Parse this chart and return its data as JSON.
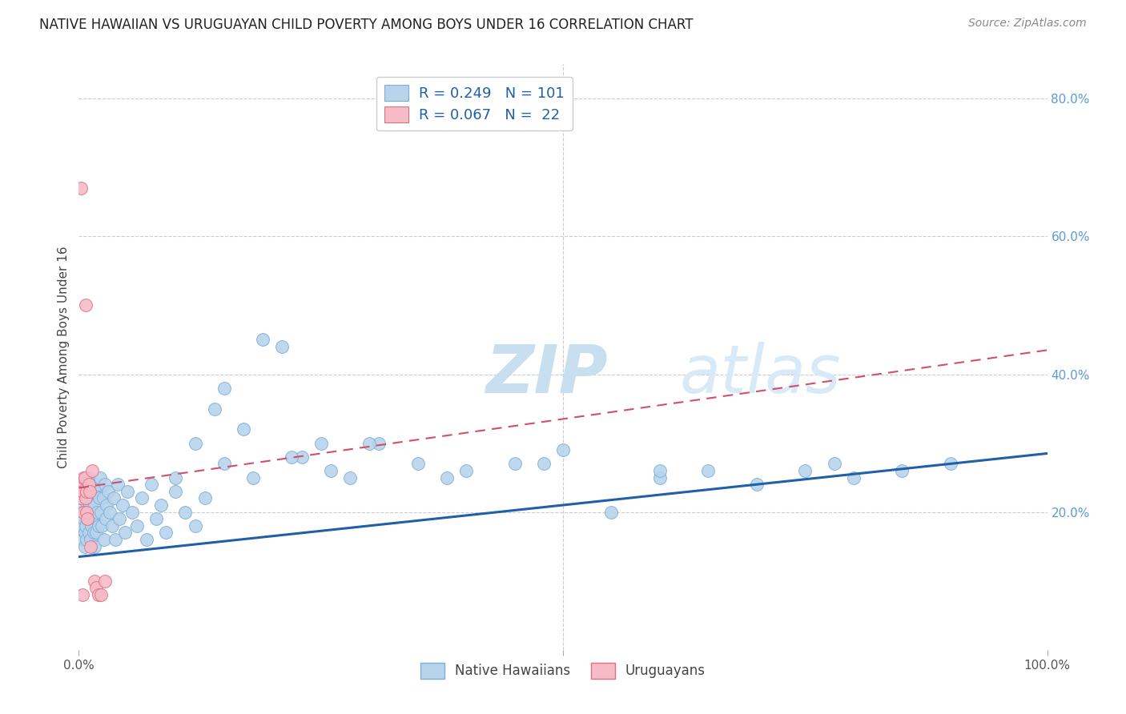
{
  "title": "NATIVE HAWAIIAN VS URUGUAYAN CHILD POVERTY AMONG BOYS UNDER 16 CORRELATION CHART",
  "source": "Source: ZipAtlas.com",
  "ylabel": "Child Poverty Among Boys Under 16",
  "xlim": [
    0,
    1.0
  ],
  "ylim": [
    0,
    0.85
  ],
  "legend_entries": [
    {
      "color": "#b8d4ed",
      "edge": "#7bafd4",
      "label": "R = 0.249   N = 101"
    },
    {
      "color": "#f5bcc8",
      "edge": "#e07080",
      "label": "R = 0.067   N =  22"
    }
  ],
  "native_hawaiian": {
    "color": "#b8d4ed",
    "edge_color": "#7bafd4",
    "trend_color": "#2060a8",
    "trend_start_y": 0.135,
    "trend_end_y": 0.285,
    "x": [
      0.002,
      0.003,
      0.004,
      0.004,
      0.005,
      0.005,
      0.005,
      0.006,
      0.006,
      0.007,
      0.007,
      0.007,
      0.008,
      0.008,
      0.008,
      0.009,
      0.009,
      0.01,
      0.01,
      0.01,
      0.011,
      0.011,
      0.012,
      0.012,
      0.013,
      0.013,
      0.014,
      0.014,
      0.015,
      0.015,
      0.016,
      0.016,
      0.017,
      0.018,
      0.018,
      0.019,
      0.02,
      0.02,
      0.021,
      0.022,
      0.023,
      0.024,
      0.025,
      0.026,
      0.027,
      0.028,
      0.029,
      0.03,
      0.032,
      0.034,
      0.036,
      0.038,
      0.04,
      0.042,
      0.045,
      0.048,
      0.05,
      0.055,
      0.06,
      0.065,
      0.07,
      0.075,
      0.08,
      0.085,
      0.09,
      0.1,
      0.11,
      0.12,
      0.13,
      0.14,
      0.15,
      0.17,
      0.19,
      0.21,
      0.23,
      0.25,
      0.28,
      0.31,
      0.35,
      0.4,
      0.45,
      0.5,
      0.55,
      0.6,
      0.65,
      0.7,
      0.75,
      0.8,
      0.85,
      0.9,
      0.1,
      0.12,
      0.15,
      0.18,
      0.22,
      0.26,
      0.3,
      0.38,
      0.48,
      0.6,
      0.78
    ],
    "y": [
      0.18,
      0.2,
      0.16,
      0.22,
      0.19,
      0.21,
      0.23,
      0.17,
      0.15,
      0.22,
      0.18,
      0.2,
      0.16,
      0.22,
      0.24,
      0.19,
      0.21,
      0.17,
      0.23,
      0.25,
      0.19,
      0.21,
      0.16,
      0.22,
      0.18,
      0.24,
      0.2,
      0.22,
      0.17,
      0.23,
      0.15,
      0.21,
      0.19,
      0.17,
      0.23,
      0.2,
      0.18,
      0.24,
      0.22,
      0.25,
      0.2,
      0.18,
      0.22,
      0.16,
      0.24,
      0.19,
      0.21,
      0.23,
      0.2,
      0.18,
      0.22,
      0.16,
      0.24,
      0.19,
      0.21,
      0.17,
      0.23,
      0.2,
      0.18,
      0.22,
      0.16,
      0.24,
      0.19,
      0.21,
      0.17,
      0.23,
      0.2,
      0.18,
      0.22,
      0.35,
      0.38,
      0.32,
      0.45,
      0.44,
      0.28,
      0.3,
      0.25,
      0.3,
      0.27,
      0.26,
      0.27,
      0.29,
      0.2,
      0.25,
      0.26,
      0.24,
      0.26,
      0.25,
      0.26,
      0.27,
      0.25,
      0.3,
      0.27,
      0.25,
      0.28,
      0.26,
      0.3,
      0.25,
      0.27,
      0.26,
      0.27
    ]
  },
  "uruguayan": {
    "color": "#f5bcc8",
    "edge_color": "#e07080",
    "trend_color": "#d05068",
    "trend_start_y": 0.235,
    "trend_end_y": 0.435,
    "x": [
      0.002,
      0.003,
      0.004,
      0.005,
      0.005,
      0.006,
      0.007,
      0.007,
      0.008,
      0.008,
      0.009,
      0.01,
      0.011,
      0.012,
      0.014,
      0.016,
      0.018,
      0.02,
      0.023,
      0.027,
      0.002,
      0.004
    ],
    "y": [
      0.22,
      0.24,
      0.23,
      0.2,
      0.25,
      0.25,
      0.22,
      0.5,
      0.23,
      0.2,
      0.19,
      0.24,
      0.23,
      0.15,
      0.26,
      0.1,
      0.09,
      0.08,
      0.08,
      0.1,
      0.67,
      0.08
    ]
  },
  "background_color": "#ffffff",
  "grid_color": "#cccccc",
  "title_fontsize": 12,
  "axis_label_fontsize": 11,
  "tick_fontsize": 11,
  "source_fontsize": 10,
  "watermark_color": "#daeaf5",
  "watermark_fontsize": 60
}
